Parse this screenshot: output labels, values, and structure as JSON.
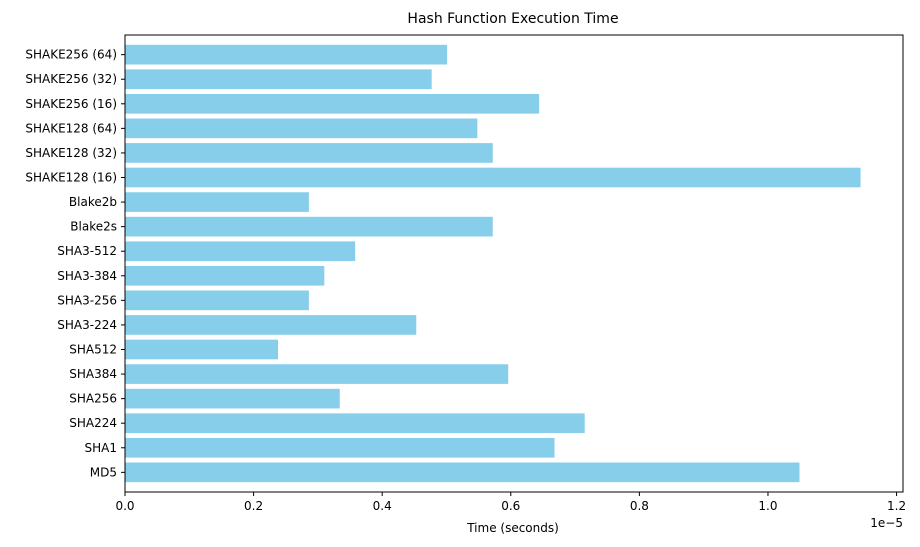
{
  "chart_data": {
    "type": "bar",
    "orientation": "horizontal",
    "title": "Hash Function Execution Time",
    "xlabel": "Time (seconds)",
    "ylabel": "",
    "x_offset_text": "1e−5",
    "x_scale_exponent": -5,
    "xlim": [
      0,
      1.21e-05
    ],
    "x_ticks": [
      0.0,
      0.2,
      0.4,
      0.6,
      0.8,
      1.0,
      1.2
    ],
    "x_tick_labels": [
      "0.0",
      "0.2",
      "0.4",
      "0.6",
      "0.8",
      "1.0",
      "1.2"
    ],
    "grid": false,
    "bar_color": "#87ceeb",
    "categories": [
      "MD5",
      "SHA1",
      "SHA224",
      "SHA256",
      "SHA384",
      "SHA512",
      "SHA3-224",
      "SHA3-256",
      "SHA3-384",
      "SHA3-512",
      "Blake2s",
      "Blake2b",
      "SHAKE128 (16)",
      "SHAKE128 (32)",
      "SHAKE128 (64)",
      "SHAKE256 (16)",
      "SHAKE256 (32)",
      "SHAKE256 (64)"
    ],
    "values": [
      1.049e-05,
      6.68e-06,
      7.15e-06,
      3.34e-06,
      5.96e-06,
      2.38e-06,
      4.53e-06,
      2.86e-06,
      3.1e-06,
      3.58e-06,
      5.72e-06,
      2.86e-06,
      1.144e-05,
      5.72e-06,
      5.48e-06,
      6.44e-06,
      4.77e-06,
      5.01e-06
    ]
  }
}
